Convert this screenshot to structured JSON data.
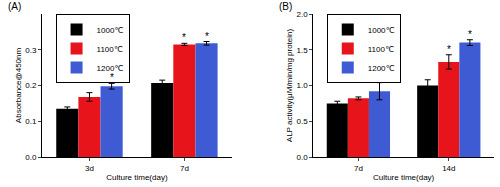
{
  "chart_data": [
    {
      "type": "bar",
      "title": "(A)",
      "x_label": "Culture time(day)",
      "y_label": "Absorbance@450nm",
      "categories": [
        "3d",
        "7d"
      ],
      "series": [
        {
          "name": "1000℃",
          "color": "#000000",
          "values": [
            0.135,
            0.207
          ],
          "errors": [
            0.005,
            0.008
          ]
        },
        {
          "name": "1100℃",
          "color": "#e8141c",
          "values": [
            0.168,
            0.315
          ],
          "errors": [
            0.012,
            0.003
          ]
        },
        {
          "name": "1200℃",
          "color": "#3f5bd4",
          "values": [
            0.198,
            0.318
          ],
          "errors": [
            0.008,
            0.005
          ]
        }
      ],
      "annotations": [
        {
          "text": "*",
          "category": "3d",
          "series": "1200℃"
        },
        {
          "text": "*",
          "category": "7d",
          "series": "1100℃"
        },
        {
          "text": "*",
          "category": "7d",
          "series": "1200℃"
        }
      ],
      "ylim": [
        0,
        0.4
      ],
      "yticks": [
        {
          "value": 0,
          "label": "0.0"
        },
        0.1,
        0.2,
        0.3
      ],
      "grid": false,
      "legend": "upper left"
    },
    {
      "type": "bar",
      "title": "(B)",
      "x_label": "Culture time(day)",
      "y_label": "ALP activity(μM/min/mg protein)",
      "categories": [
        "7d",
        "14d"
      ],
      "series": [
        {
          "name": "1000℃",
          "color": "#000000",
          "values": [
            0.75,
            1.0
          ],
          "errors": [
            0.03,
            0.08
          ]
        },
        {
          "name": "1100℃",
          "color": "#e8141c",
          "values": [
            0.82,
            1.33
          ],
          "errors": [
            0.02,
            0.1
          ]
        },
        {
          "name": "1200℃",
          "color": "#3f5bd4",
          "values": [
            0.92,
            1.6
          ],
          "errors": [
            0.12,
            0.04
          ]
        }
      ],
      "annotations": [
        {
          "text": "*",
          "category": "14d",
          "series": "1100℃"
        },
        {
          "text": "*",
          "category": "14d",
          "series": "1200℃"
        }
      ],
      "ylim": [
        0,
        2.0
      ],
      "yticks": [
        {
          "value": 0,
          "label": "0.0"
        },
        {
          "value": 0.5,
          "label": "0.5"
        },
        {
          "value": 1,
          "label": "1.0"
        },
        {
          "value": 1.5,
          "label": "1.5"
        },
        {
          "value": 2,
          "label": "2.0"
        }
      ],
      "grid": false,
      "legend": "upper left"
    }
  ]
}
